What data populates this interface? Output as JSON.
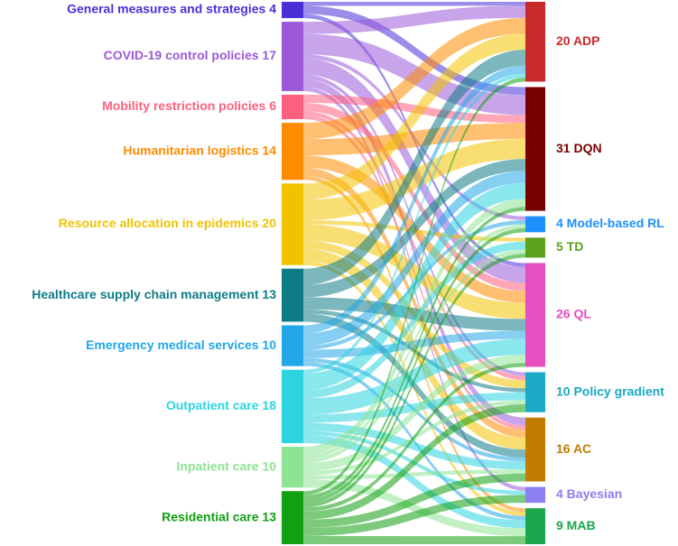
{
  "chart_data": {
    "type": "sankey",
    "sources": [
      {
        "id": "gm",
        "name": "General measures and strategies",
        "value": 4,
        "color": "#4a2fd9"
      },
      {
        "id": "cov",
        "name": "COVID-19 control policies",
        "value": 17,
        "color": "#9b59d9"
      },
      {
        "id": "mob",
        "name": "Mobility restriction policies",
        "value": 6,
        "color": "#ff5f7e"
      },
      {
        "id": "hum",
        "name": "Humanitarian logistics",
        "value": 14,
        "color": "#ff8c00"
      },
      {
        "id": "res",
        "name": "Resource allocation in epidemics",
        "value": 20,
        "color": "#f2c200"
      },
      {
        "id": "hsc",
        "name": "Healthcare supply chain management",
        "value": 13,
        "color": "#0e7c86"
      },
      {
        "id": "ems",
        "name": "Emergency medical services",
        "value": 10,
        "color": "#22a7e8"
      },
      {
        "id": "out",
        "name": "Outpatient care",
        "value": 18,
        "color": "#2bd4e0"
      },
      {
        "id": "inp",
        "name": "Inpatient care",
        "value": 10,
        "color": "#8ee394"
      },
      {
        "id": "rcc",
        "name": "Residential care",
        "value": 13,
        "color": "#11a011"
      }
    ],
    "targets": [
      {
        "id": "adp",
        "name": "ADP",
        "value": 20,
        "color": "#c72a2a"
      },
      {
        "id": "dqn",
        "name": "DQN",
        "value": 31,
        "color": "#7a0000"
      },
      {
        "id": "mbr",
        "name": "Model-based RL",
        "value": 4,
        "color": "#1e90ff"
      },
      {
        "id": "td",
        "name": "TD",
        "value": 5,
        "color": "#5ea11a"
      },
      {
        "id": "ql",
        "name": "QL",
        "value": 26,
        "color": "#e54fbf"
      },
      {
        "id": "pg",
        "name": "Policy gradient",
        "value": 10,
        "color": "#1aa9c6"
      },
      {
        "id": "ac",
        "name": "AC",
        "value": 16,
        "color": "#c27c00"
      },
      {
        "id": "bay",
        "name": "Bayesian",
        "value": 4,
        "color": "#8c7ff0"
      },
      {
        "id": "mab",
        "name": "MAB",
        "value": 9,
        "color": "#1aa64a"
      }
    ],
    "links": [
      {
        "source": "gm",
        "target": "adp",
        "value": 1
      },
      {
        "source": "gm",
        "target": "dqn",
        "value": 2
      },
      {
        "source": "gm",
        "target": "ql",
        "value": 1
      },
      {
        "source": "cov",
        "target": "adp",
        "value": 3
      },
      {
        "source": "cov",
        "target": "dqn",
        "value": 5
      },
      {
        "source": "cov",
        "target": "mbr",
        "value": 1
      },
      {
        "source": "cov",
        "target": "ql",
        "value": 4
      },
      {
        "source": "cov",
        "target": "pg",
        "value": 1
      },
      {
        "source": "cov",
        "target": "ac",
        "value": 2
      },
      {
        "source": "cov",
        "target": "bay",
        "value": 1
      },
      {
        "source": "mob",
        "target": "dqn",
        "value": 2
      },
      {
        "source": "mob",
        "target": "ql",
        "value": 2
      },
      {
        "source": "mob",
        "target": "pg",
        "value": 1
      },
      {
        "source": "mob",
        "target": "ac",
        "value": 1
      },
      {
        "source": "hum",
        "target": "adp",
        "value": 4
      },
      {
        "source": "hum",
        "target": "dqn",
        "value": 4
      },
      {
        "source": "hum",
        "target": "ql",
        "value": 3
      },
      {
        "source": "hum",
        "target": "ac",
        "value": 2
      },
      {
        "source": "hum",
        "target": "mab",
        "value": 1
      },
      {
        "source": "res",
        "target": "adp",
        "value": 4
      },
      {
        "source": "res",
        "target": "dqn",
        "value": 5
      },
      {
        "source": "res",
        "target": "td",
        "value": 1
      },
      {
        "source": "res",
        "target": "ql",
        "value": 4
      },
      {
        "source": "res",
        "target": "pg",
        "value": 2
      },
      {
        "source": "res",
        "target": "ac",
        "value": 3
      },
      {
        "source": "res",
        "target": "mab",
        "value": 1
      },
      {
        "source": "hsc",
        "target": "adp",
        "value": 4
      },
      {
        "source": "hsc",
        "target": "dqn",
        "value": 3
      },
      {
        "source": "hsc",
        "target": "ql",
        "value": 3
      },
      {
        "source": "hsc",
        "target": "pg",
        "value": 1
      },
      {
        "source": "hsc",
        "target": "ac",
        "value": 2
      },
      {
        "source": "ems",
        "target": "adp",
        "value": 2
      },
      {
        "source": "ems",
        "target": "dqn",
        "value": 3
      },
      {
        "source": "ems",
        "target": "mbr",
        "value": 1
      },
      {
        "source": "ems",
        "target": "ql",
        "value": 2
      },
      {
        "source": "ems",
        "target": "ac",
        "value": 1
      },
      {
        "source": "ems",
        "target": "mab",
        "value": 1
      },
      {
        "source": "out",
        "target": "adp",
        "value": 1
      },
      {
        "source": "out",
        "target": "dqn",
        "value": 4
      },
      {
        "source": "out",
        "target": "td",
        "value": 2
      },
      {
        "source": "out",
        "target": "ql",
        "value": 4
      },
      {
        "source": "out",
        "target": "pg",
        "value": 2
      },
      {
        "source": "out",
        "target": "ac",
        "value": 2
      },
      {
        "source": "out",
        "target": "bay",
        "value": 1
      },
      {
        "source": "out",
        "target": "mab",
        "value": 2
      },
      {
        "source": "inp",
        "target": "dqn",
        "value": 2
      },
      {
        "source": "inp",
        "target": "mbr",
        "value": 1
      },
      {
        "source": "inp",
        "target": "td",
        "value": 1
      },
      {
        "source": "inp",
        "target": "ql",
        "value": 2
      },
      {
        "source": "inp",
        "target": "pg",
        "value": 1
      },
      {
        "source": "inp",
        "target": "ac",
        "value": 1
      },
      {
        "source": "inp",
        "target": "mab",
        "value": 2
      },
      {
        "source": "rcc",
        "target": "adp",
        "value": 1
      },
      {
        "source": "rcc",
        "target": "dqn",
        "value": 1
      },
      {
        "source": "rcc",
        "target": "mbr",
        "value": 1
      },
      {
        "source": "rcc",
        "target": "td",
        "value": 1
      },
      {
        "source": "rcc",
        "target": "ql",
        "value": 1
      },
      {
        "source": "rcc",
        "target": "pg",
        "value": 2
      },
      {
        "source": "rcc",
        "target": "ac",
        "value": 2
      },
      {
        "source": "rcc",
        "target": "bay",
        "value": 2
      },
      {
        "source": "rcc",
        "target": "mab",
        "value": 2
      }
    ]
  }
}
